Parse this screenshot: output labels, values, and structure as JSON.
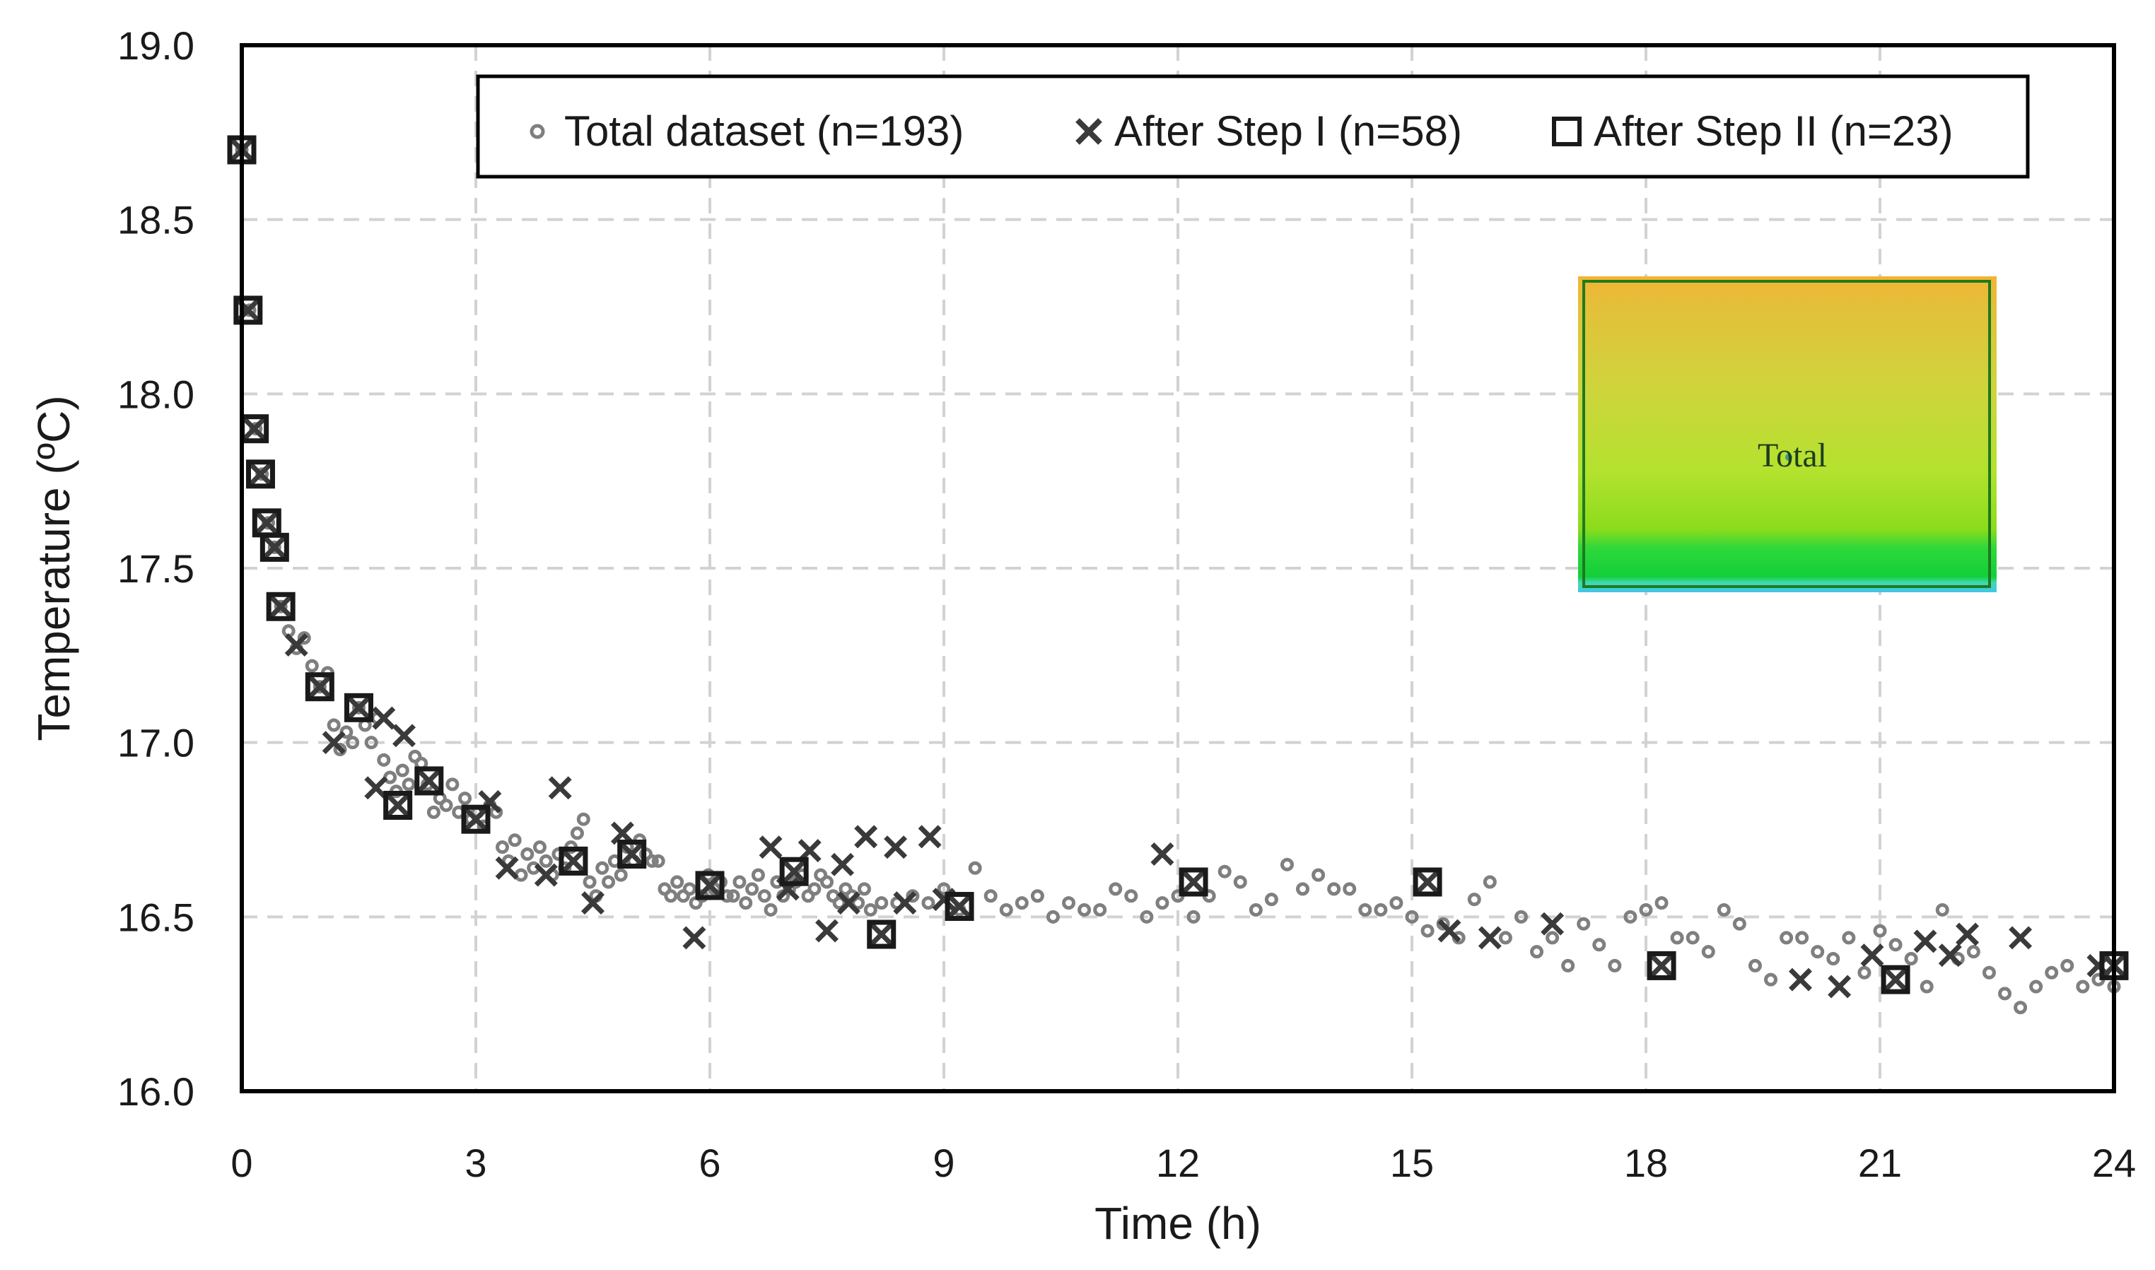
{
  "chart_data": {
    "type": "scatter",
    "title": "",
    "xlabel": "Time (h)",
    "ylabel": "Temperature (ºC)",
    "xlim": [
      0,
      24
    ],
    "ylim": [
      16.0,
      19.0
    ],
    "xticks": [
      "0",
      "3",
      "6",
      "9",
      "12",
      "15",
      "18",
      "21",
      "24"
    ],
    "yticks": [
      "16.0",
      "16.5",
      "17.0",
      "17.5",
      "18.0",
      "18.5",
      "19.0"
    ],
    "grid": true,
    "legend_position": "top",
    "inset_label": "Total",
    "series": [
      {
        "name": "Total dataset (n=193)",
        "marker": "circle",
        "color": "#7f7f7f",
        "points": [
          [
            0.0,
            18.7
          ],
          [
            0.1,
            18.24
          ],
          [
            0.18,
            17.9
          ],
          [
            0.26,
            17.77
          ],
          [
            0.34,
            17.63
          ],
          [
            0.42,
            17.56
          ],
          [
            0.5,
            17.39
          ],
          [
            0.6,
            17.32
          ],
          [
            0.7,
            17.27
          ],
          [
            0.8,
            17.3
          ],
          [
            0.9,
            17.22
          ],
          [
            1.0,
            17.16
          ],
          [
            1.1,
            17.2
          ],
          [
            1.18,
            17.05
          ],
          [
            1.26,
            16.98
          ],
          [
            1.34,
            17.03
          ],
          [
            1.42,
            17.0
          ],
          [
            1.5,
            17.1
          ],
          [
            1.58,
            17.05
          ],
          [
            1.66,
            17.0
          ],
          [
            1.74,
            17.07
          ],
          [
            1.82,
            16.95
          ],
          [
            1.9,
            16.9
          ],
          [
            1.98,
            16.86
          ],
          [
            2.06,
            16.92
          ],
          [
            2.14,
            16.88
          ],
          [
            2.22,
            16.96
          ],
          [
            2.3,
            16.94
          ],
          [
            2.38,
            16.88
          ],
          [
            2.46,
            16.8
          ],
          [
            2.54,
            16.84
          ],
          [
            2.62,
            16.82
          ],
          [
            2.7,
            16.88
          ],
          [
            2.78,
            16.8
          ],
          [
            2.86,
            16.84
          ],
          [
            2.94,
            16.78
          ],
          [
            3.02,
            16.8
          ],
          [
            3.1,
            16.76
          ],
          [
            3.18,
            16.82
          ],
          [
            3.26,
            16.8
          ],
          [
            3.34,
            16.7
          ],
          [
            3.42,
            16.66
          ],
          [
            3.5,
            16.72
          ],
          [
            3.58,
            16.62
          ],
          [
            3.66,
            16.68
          ],
          [
            3.74,
            16.64
          ],
          [
            3.82,
            16.7
          ],
          [
            3.9,
            16.66
          ],
          [
            3.98,
            16.62
          ],
          [
            4.06,
            16.68
          ],
          [
            4.14,
            16.64
          ],
          [
            4.22,
            16.7
          ],
          [
            4.3,
            16.74
          ],
          [
            4.38,
            16.78
          ],
          [
            4.46,
            16.6
          ],
          [
            4.54,
            16.56
          ],
          [
            4.62,
            16.64
          ],
          [
            4.7,
            16.6
          ],
          [
            4.78,
            16.66
          ],
          [
            4.86,
            16.62
          ],
          [
            4.94,
            16.7
          ],
          [
            5.02,
            16.66
          ],
          [
            5.1,
            16.72
          ],
          [
            5.18,
            16.68
          ],
          [
            5.26,
            16.66
          ],
          [
            5.34,
            16.66
          ],
          [
            5.42,
            16.58
          ],
          [
            5.5,
            16.56
          ],
          [
            5.58,
            16.6
          ],
          [
            5.66,
            16.56
          ],
          [
            5.74,
            16.58
          ],
          [
            5.82,
            16.54
          ],
          [
            5.9,
            16.56
          ],
          [
            5.98,
            16.62
          ],
          [
            6.06,
            16.58
          ],
          [
            6.14,
            16.6
          ],
          [
            6.22,
            16.56
          ],
          [
            6.3,
            16.56
          ],
          [
            6.38,
            16.6
          ],
          [
            6.46,
            16.54
          ],
          [
            6.54,
            16.58
          ],
          [
            6.62,
            16.62
          ],
          [
            6.7,
            16.56
          ],
          [
            6.78,
            16.52
          ],
          [
            6.86,
            16.6
          ],
          [
            6.94,
            16.56
          ],
          [
            7.02,
            16.58
          ],
          [
            7.1,
            16.6
          ],
          [
            7.18,
            16.62
          ],
          [
            7.26,
            16.56
          ],
          [
            7.34,
            16.58
          ],
          [
            7.42,
            16.62
          ],
          [
            7.5,
            16.6
          ],
          [
            7.58,
            16.56
          ],
          [
            7.66,
            16.54
          ],
          [
            7.74,
            16.58
          ],
          [
            7.82,
            16.56
          ],
          [
            7.9,
            16.54
          ],
          [
            7.98,
            16.58
          ],
          [
            8.06,
            16.52
          ],
          [
            8.2,
            16.54
          ],
          [
            8.4,
            16.54
          ],
          [
            8.6,
            16.56
          ],
          [
            8.8,
            16.54
          ],
          [
            9.0,
            16.58
          ],
          [
            9.2,
            16.52
          ],
          [
            9.4,
            16.64
          ],
          [
            9.6,
            16.56
          ],
          [
            9.8,
            16.52
          ],
          [
            10.0,
            16.54
          ],
          [
            10.2,
            16.56
          ],
          [
            10.4,
            16.5
          ],
          [
            10.6,
            16.54
          ],
          [
            10.8,
            16.52
          ],
          [
            11.0,
            16.52
          ],
          [
            11.2,
            16.58
          ],
          [
            11.4,
            16.56
          ],
          [
            11.6,
            16.5
          ],
          [
            11.8,
            16.54
          ],
          [
            12.0,
            16.56
          ],
          [
            12.2,
            16.5
          ],
          [
            12.4,
            16.56
          ],
          [
            12.6,
            16.63
          ],
          [
            12.8,
            16.6
          ],
          [
            13.0,
            16.52
          ],
          [
            13.2,
            16.55
          ],
          [
            13.4,
            16.65
          ],
          [
            13.6,
            16.58
          ],
          [
            13.8,
            16.62
          ],
          [
            14.0,
            16.58
          ],
          [
            14.2,
            16.58
          ],
          [
            14.4,
            16.52
          ],
          [
            14.6,
            16.52
          ],
          [
            14.8,
            16.54
          ],
          [
            15.0,
            16.5
          ],
          [
            15.2,
            16.46
          ],
          [
            15.4,
            16.48
          ],
          [
            15.6,
            16.44
          ],
          [
            15.8,
            16.55
          ],
          [
            16.0,
            16.6
          ],
          [
            16.2,
            16.44
          ],
          [
            16.4,
            16.5
          ],
          [
            16.6,
            16.4
          ],
          [
            16.8,
            16.44
          ],
          [
            17.0,
            16.36
          ],
          [
            17.2,
            16.48
          ],
          [
            17.4,
            16.42
          ],
          [
            17.6,
            16.36
          ],
          [
            17.8,
            16.5
          ],
          [
            18.0,
            16.52
          ],
          [
            18.2,
            16.54
          ],
          [
            18.4,
            16.44
          ],
          [
            18.6,
            16.44
          ],
          [
            18.8,
            16.4
          ],
          [
            19.0,
            16.52
          ],
          [
            19.2,
            16.48
          ],
          [
            19.4,
            16.36
          ],
          [
            19.6,
            16.32
          ],
          [
            19.8,
            16.44
          ],
          [
            20.0,
            16.44
          ],
          [
            20.2,
            16.4
          ],
          [
            20.4,
            16.38
          ],
          [
            20.6,
            16.44
          ],
          [
            20.8,
            16.34
          ],
          [
            21.0,
            16.46
          ],
          [
            21.2,
            16.42
          ],
          [
            21.4,
            16.38
          ],
          [
            21.6,
            16.3
          ],
          [
            21.8,
            16.52
          ],
          [
            22.0,
            16.38
          ],
          [
            22.2,
            16.4
          ],
          [
            22.4,
            16.34
          ],
          [
            22.6,
            16.28
          ],
          [
            22.8,
            16.24
          ],
          [
            23.0,
            16.3
          ],
          [
            23.2,
            16.34
          ],
          [
            23.4,
            16.36
          ],
          [
            23.6,
            16.3
          ],
          [
            23.8,
            16.32
          ],
          [
            24.0,
            16.3
          ]
        ]
      },
      {
        "name": "After Step I (n=58)",
        "marker": "x",
        "color": "#3a3a3a",
        "points": [
          [
            0.0,
            18.7
          ],
          [
            0.08,
            18.24
          ],
          [
            0.16,
            17.9
          ],
          [
            0.24,
            17.77
          ],
          [
            0.32,
            17.63
          ],
          [
            0.42,
            17.56
          ],
          [
            0.5,
            17.39
          ],
          [
            0.7,
            17.28
          ],
          [
            1.0,
            17.16
          ],
          [
            1.18,
            17.0
          ],
          [
            1.5,
            17.1
          ],
          [
            1.72,
            16.87
          ],
          [
            1.82,
            17.07
          ],
          [
            2.0,
            16.82
          ],
          [
            2.08,
            17.02
          ],
          [
            2.4,
            16.89
          ],
          [
            3.0,
            16.78
          ],
          [
            3.18,
            16.83
          ],
          [
            3.4,
            16.64
          ],
          [
            3.9,
            16.62
          ],
          [
            4.08,
            16.87
          ],
          [
            4.25,
            16.66
          ],
          [
            4.5,
            16.54
          ],
          [
            4.88,
            16.74
          ],
          [
            5.0,
            16.68
          ],
          [
            5.8,
            16.44
          ],
          [
            6.0,
            16.59
          ],
          [
            6.78,
            16.7
          ],
          [
            7.0,
            16.58
          ],
          [
            7.08,
            16.63
          ],
          [
            7.28,
            16.69
          ],
          [
            7.5,
            16.46
          ],
          [
            7.7,
            16.65
          ],
          [
            7.78,
            16.54
          ],
          [
            8.0,
            16.73
          ],
          [
            8.2,
            16.45
          ],
          [
            8.38,
            16.7
          ],
          [
            8.5,
            16.54
          ],
          [
            8.82,
            16.73
          ],
          [
            9.0,
            16.55
          ],
          [
            9.2,
            16.53
          ],
          [
            11.8,
            16.68
          ],
          [
            12.2,
            16.6
          ],
          [
            15.2,
            16.6
          ],
          [
            15.48,
            16.46
          ],
          [
            16.0,
            16.44
          ],
          [
            16.8,
            16.48
          ],
          [
            18.2,
            16.36
          ],
          [
            19.98,
            16.32
          ],
          [
            20.48,
            16.3
          ],
          [
            20.9,
            16.39
          ],
          [
            21.2,
            16.32
          ],
          [
            21.58,
            16.43
          ],
          [
            21.9,
            16.39
          ],
          [
            22.12,
            16.45
          ],
          [
            22.8,
            16.44
          ],
          [
            23.8,
            16.36
          ],
          [
            24.0,
            16.36
          ]
        ]
      },
      {
        "name": "After Step II (n=23)",
        "marker": "square",
        "color": "#1a1a1a",
        "points": [
          [
            0.0,
            18.7
          ],
          [
            0.08,
            18.24
          ],
          [
            0.16,
            17.9
          ],
          [
            0.24,
            17.77
          ],
          [
            0.32,
            17.63
          ],
          [
            0.42,
            17.56
          ],
          [
            0.5,
            17.39
          ],
          [
            1.0,
            17.16
          ],
          [
            1.5,
            17.1
          ],
          [
            2.0,
            16.82
          ],
          [
            2.4,
            16.89
          ],
          [
            3.0,
            16.78
          ],
          [
            4.25,
            16.66
          ],
          [
            5.0,
            16.68
          ],
          [
            6.0,
            16.59
          ],
          [
            7.08,
            16.63
          ],
          [
            8.2,
            16.45
          ],
          [
            9.2,
            16.53
          ],
          [
            12.2,
            16.6
          ],
          [
            15.2,
            16.6
          ],
          [
            18.2,
            16.36
          ],
          [
            21.2,
            16.32
          ],
          [
            24.0,
            16.36
          ]
        ]
      }
    ]
  }
}
